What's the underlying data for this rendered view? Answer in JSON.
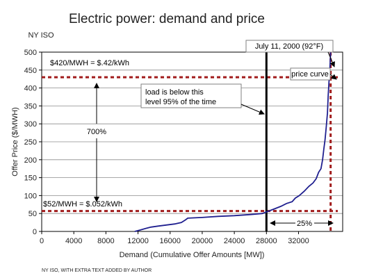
{
  "chart_data": {
    "type": "line",
    "title": "Electric power: demand and price",
    "subtitle": "NY ISO",
    "xlabel": "Demand (Cumulative Offer Amounts [MW])",
    "ylabel": "Offer Price ($/MWH)",
    "xlim": [
      0,
      37500
    ],
    "ylim": [
      0,
      500
    ],
    "xticks": [
      0,
      4000,
      8000,
      12000,
      16000,
      20000,
      24000,
      28000,
      32000
    ],
    "yticks": [
      0,
      50,
      100,
      150,
      200,
      250,
      300,
      350,
      400,
      450,
      500
    ],
    "grid": "horizontal",
    "source": "NY ISO, WITH EXTRA TEXT ADDED BY AUTHOR",
    "series": [
      {
        "name": "price curve",
        "color": "#1f1f8f",
        "x": [
          11600,
          12300,
          12900,
          13600,
          14500,
          15600,
          16600,
          17400,
          17900,
          18200,
          20000,
          22000,
          24000,
          26000,
          27500,
          28300,
          29000,
          29800,
          30500,
          31200,
          31600,
          31900,
          32100,
          32700,
          33300,
          33800,
          34200,
          34500,
          34800,
          35000,
          35150,
          35300,
          35450,
          35600,
          35700,
          35800,
          35900,
          36000
        ],
        "y": [
          0,
          4,
          8,
          12,
          15,
          18,
          21,
          25,
          32,
          37,
          39,
          42,
          44,
          47,
          50,
          57,
          63,
          70,
          78,
          83,
          93,
          97,
          100,
          112,
          126,
          135,
          147,
          165,
          175,
          200,
          230,
          255,
          290,
          330,
          380,
          420,
          450,
          500
        ]
      }
    ],
    "reference_lines": [
      {
        "orientation": "horizontal",
        "value": 430,
        "style": "dashed",
        "color": "#a11c1c"
      },
      {
        "orientation": "horizontal",
        "value": 57,
        "style": "dashed",
        "color": "#a11c1c"
      },
      {
        "orientation": "vertical",
        "value": 36000,
        "style": "dashed",
        "color": "#a11c1c"
      },
      {
        "orientation": "vertical",
        "value": 28000,
        "style": "solid",
        "color": "#000000"
      }
    ],
    "annotations": {
      "price_high": "$420/MWH = $.42/kWh",
      "price_low": "$52/MWH = $.052/kWh",
      "ratio": "700%",
      "load_note_line1": "load is below this",
      "load_note_line2": "level 95% of the time",
      "price_curve_label": "price curve",
      "peak_label": "July 11, 2000 (92°F)",
      "demand_gap": "25%"
    }
  }
}
